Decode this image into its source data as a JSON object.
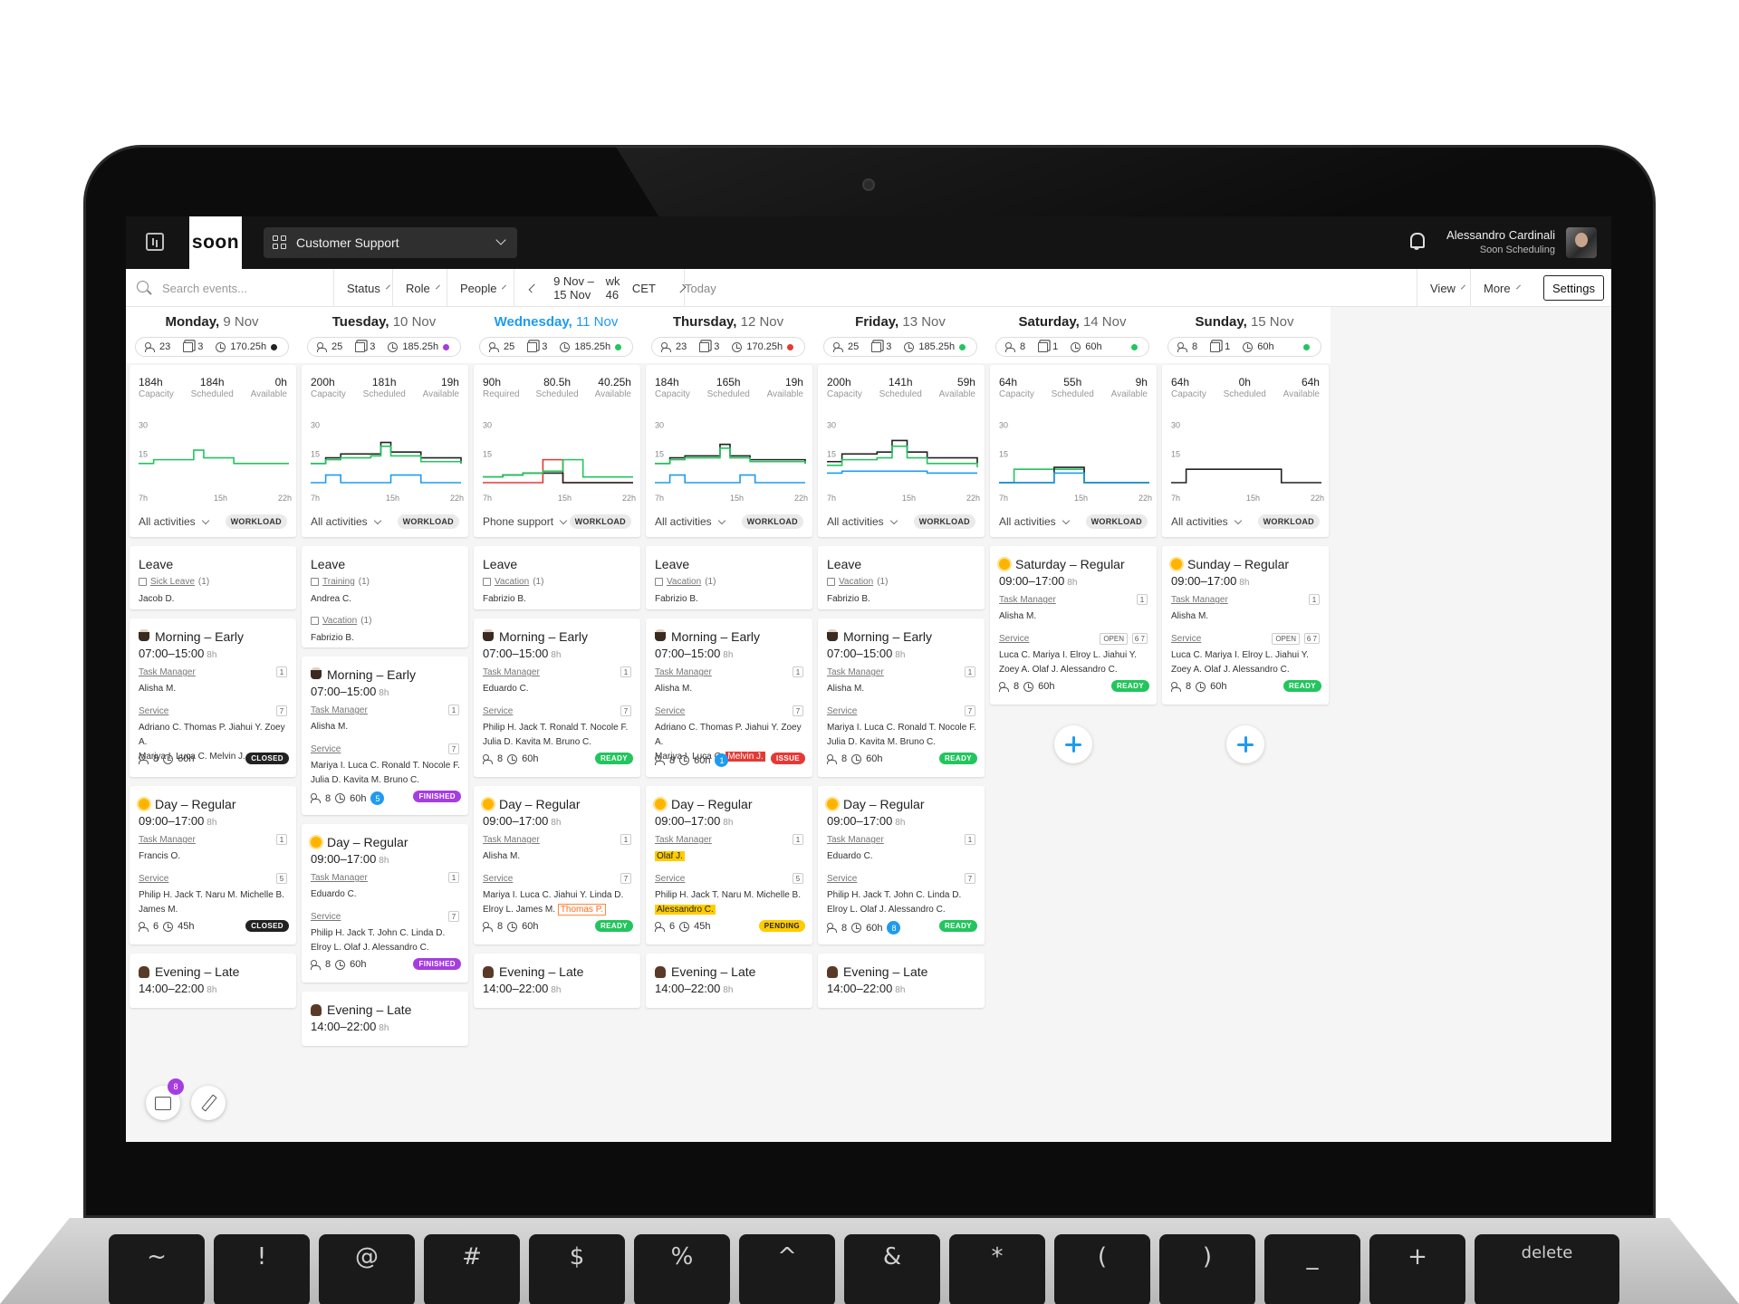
{
  "app": {
    "logo": "soon",
    "team": "Customer Support",
    "user_name": "Alessandro Cardinali",
    "user_org": "Soon Scheduling"
  },
  "toolbar": {
    "search_placeholder": "Search events...",
    "filters": [
      "Status",
      "Role",
      "People"
    ],
    "range": "9 Nov – 15 Nov",
    "week": "wk 46",
    "tz": "CET",
    "today": "Today",
    "view": "View",
    "more": "More",
    "settings": "Settings"
  },
  "colors": {
    "accent": "#1e9bf0",
    "green": "#22c55e",
    "red": "#e53935",
    "purple": "#a53de0",
    "black": "#222222",
    "yellow": "#ffcc00"
  },
  "chart_data": {
    "type": "line",
    "title": "",
    "x_ticks": [
      "7h",
      "15h",
      "22h"
    ],
    "y_ticks": [
      30,
      15
    ],
    "ylim": [
      0,
      35
    ],
    "days": [
      {
        "series": [
          {
            "color": "#22c55e",
            "x": [
              7,
              8.5,
              12.5,
              13.5,
              16.5,
              22
            ],
            "y": [
              10,
              12,
              17,
              13,
              10,
              10
            ]
          }
        ]
      },
      {
        "series": [
          {
            "color": "#222222",
            "x": [
              7,
              8.5,
              10,
              13,
              14,
              15,
              18,
              22
            ],
            "y": [
              10,
              13,
              15,
              15,
              21,
              16,
              13,
              10
            ]
          },
          {
            "color": "#22c55e",
            "x": [
              7,
              8.5,
              10,
              13,
              14,
              15,
              18,
              22
            ],
            "y": [
              10,
              12,
              13,
              14,
              19,
              14,
              11,
              10
            ]
          },
          {
            "color": "#1e9bf0",
            "x": [
              7,
              8.5,
              10,
              14,
              15,
              18,
              22
            ],
            "y": [
              0,
              4,
              0,
              0,
              4,
              0,
              0
            ]
          }
        ]
      },
      {
        "series": [
          {
            "color": "#e53935",
            "x": [
              7,
              13,
              15,
              22
            ],
            "y": [
              0,
              12,
              0,
              0
            ]
          },
          {
            "color": "#222222",
            "x": [
              7,
              9,
              11,
              13,
              15,
              22
            ],
            "y": [
              3,
              4,
              5,
              5,
              0,
              0
            ]
          },
          {
            "color": "#22c55e",
            "x": [
              7,
              9,
              11,
              13,
              15,
              17,
              22
            ],
            "y": [
              3,
              4,
              5,
              6,
              12,
              3,
              3
            ]
          }
        ]
      },
      {
        "series": [
          {
            "color": "#222222",
            "x": [
              7,
              8.5,
              10,
              12,
              13.5,
              14.5,
              16.5,
              22
            ],
            "y": [
              10,
              13,
              14,
              14,
              20,
              14,
              12,
              10
            ]
          },
          {
            "color": "#22c55e",
            "x": [
              7,
              8.5,
              10,
              12,
              13.5,
              14.5,
              16.5,
              22
            ],
            "y": [
              10,
              12,
              13,
              13,
              18,
              13,
              11,
              10
            ]
          },
          {
            "color": "#1e9bf0",
            "x": [
              7,
              8.5,
              10,
              14,
              15.5,
              17,
              22
            ],
            "y": [
              0,
              4,
              0,
              0,
              4,
              0,
              0
            ]
          }
        ]
      },
      {
        "series": [
          {
            "color": "#222222",
            "x": [
              7,
              8.5,
              12,
              13.5,
              15,
              17,
              22
            ],
            "y": [
              11,
              15,
              16,
              22,
              16,
              13,
              10
            ]
          },
          {
            "color": "#22c55e",
            "x": [
              7,
              8.5,
              12,
              13.5,
              15,
              17,
              22
            ],
            "y": [
              9,
              12,
              13,
              19,
              13,
              10,
              8
            ]
          },
          {
            "color": "#1e9bf0",
            "x": [
              7,
              8.5,
              15,
              17,
              22
            ],
            "y": [
              5,
              6,
              6,
              5,
              5
            ]
          }
        ]
      },
      {
        "series": [
          {
            "color": "#22c55e",
            "x": [
              7,
              8.5,
              12.5,
              15.5,
              22
            ],
            "y": [
              0,
              7,
              7,
              0,
              0
            ]
          },
          {
            "color": "#222222",
            "x": [
              7,
              12.5,
              15.5,
              22
            ],
            "y": [
              0,
              8,
              0,
              0
            ]
          },
          {
            "color": "#1e9bf0",
            "x": [
              7,
              12.5,
              15.5,
              22
            ],
            "y": [
              0,
              5,
              0,
              0
            ]
          }
        ]
      },
      {
        "series": [
          {
            "color": "#222222",
            "x": [
              7,
              8.5,
              18,
              22
            ],
            "y": [
              0,
              7,
              0,
              0
            ]
          }
        ]
      }
    ]
  },
  "days": [
    {
      "dow": "Monday,",
      "date": "9 Nov",
      "today": false,
      "people": "23",
      "events": "3",
      "hours": "170.25h",
      "dot": "#222222",
      "wl": [
        {
          "v": "184h",
          "l": "Capacity"
        },
        {
          "v": "184h",
          "l": "Scheduled"
        },
        {
          "v": "0h",
          "l": "Available"
        }
      ],
      "filter": "All activities",
      "wl_badge": "WORKLOAD"
    },
    {
      "dow": "Tuesday,",
      "date": "10 Nov",
      "today": false,
      "people": "25",
      "events": "3",
      "hours": "185.25h",
      "dot": "#a53de0",
      "wl": [
        {
          "v": "200h",
          "l": "Capacity"
        },
        {
          "v": "181h",
          "l": "Scheduled"
        },
        {
          "v": "19h",
          "l": "Available"
        }
      ],
      "filter": "All activities",
      "wl_badge": "WORKLOAD"
    },
    {
      "dow": "Wednesday,",
      "date": "11 Nov",
      "today": true,
      "people": "25",
      "events": "3",
      "hours": "185.25h",
      "dot": "#22c55e",
      "wl": [
        {
          "v": "90h",
          "l": "Required"
        },
        {
          "v": "80.5h",
          "l": "Scheduled"
        },
        {
          "v": "40.25h",
          "l": "Available"
        }
      ],
      "filter": "Phone support",
      "wl_badge": "WORKLOAD"
    },
    {
      "dow": "Thursday,",
      "date": "12 Nov",
      "today": false,
      "people": "23",
      "events": "3",
      "hours": "170.25h",
      "dot": "#e53935",
      "wl": [
        {
          "v": "184h",
          "l": "Capacity"
        },
        {
          "v": "165h",
          "l": "Scheduled"
        },
        {
          "v": "19h",
          "l": "Available"
        }
      ],
      "filter": "All activities",
      "wl_badge": "WORKLOAD"
    },
    {
      "dow": "Friday,",
      "date": "13 Nov",
      "today": false,
      "people": "25",
      "events": "3",
      "hours": "185.25h",
      "dot": "#22c55e",
      "wl": [
        {
          "v": "200h",
          "l": "Capacity"
        },
        {
          "v": "141h",
          "l": "Scheduled"
        },
        {
          "v": "59h",
          "l": "Available"
        }
      ],
      "filter": "All activities",
      "wl_badge": "WORKLOAD"
    },
    {
      "dow": "Saturday,",
      "date": "14 Nov",
      "today": false,
      "people": "8",
      "events": "1",
      "hours": "60h",
      "dot": "#22c55e",
      "wl": [
        {
          "v": "64h",
          "l": "Capacity"
        },
        {
          "v": "55h",
          "l": "Scheduled"
        },
        {
          "v": "9h",
          "l": "Available"
        }
      ],
      "filter": "All activities",
      "wl_badge": "WORKLOAD"
    },
    {
      "dow": "Sunday,",
      "date": "15 Nov",
      "today": false,
      "people": "8",
      "events": "1",
      "hours": "60h",
      "dot": "#22c55e",
      "wl": [
        {
          "v": "64h",
          "l": "Capacity"
        },
        {
          "v": "0h",
          "l": "Scheduled"
        },
        {
          "v": "64h",
          "l": "Available"
        }
      ],
      "filter": "All activities",
      "wl_badge": "WORKLOAD"
    }
  ],
  "leave": {
    "title": "Leave",
    "mon": [
      {
        "type": "Sick Leave",
        "count": "(1)",
        "person": "Jacob D."
      }
    ],
    "tue": [
      {
        "type": "Training",
        "count": "(1)",
        "person": "Andrea C."
      },
      {
        "type": "Vacation",
        "count": "(1)",
        "person": "Fabrizio B."
      }
    ],
    "wed": [
      {
        "type": "Vacation",
        "count": "(1)",
        "person": "Fabrizio B."
      }
    ],
    "thu": [
      {
        "type": "Vacation",
        "count": "(1)",
        "person": "Fabrizio B."
      }
    ],
    "fri": [
      {
        "type": "Vacation",
        "count": "(1)",
        "person": "Fabrizio B."
      }
    ]
  },
  "shifts": {
    "morning_title": "Morning – Early",
    "morning_time": "07:00–15:00",
    "day_title": "Day – Regular",
    "day_time": "09:00–17:00",
    "evening_title": "Evening – Late",
    "evening_time": "14:00–22:00",
    "sat_title": "Saturday – Regular",
    "sun_title": "Sunday – Regular",
    "dur": "8h",
    "role_tm": "Task Manager",
    "role_service": "Service",
    "open": "OPEN",
    "mon_m": {
      "tm": "Alisha M.",
      "tm_n": "1",
      "sv_n": "7",
      "sv": "Adriano C.  Thomas P.  Jiahui Y.  Zoey A.",
      "sv2": "Mariya I.  Luca C.  Melvin J.",
      "people": "8",
      "hours": "60h",
      "status": "CLOSED"
    },
    "mon_d": {
      "tm": "Francis O.",
      "tm_n": "1",
      "sv_n": "5",
      "sv": "Philip H.  Jack T.  Naru M.  Michelle B.",
      "sv2": "James M.",
      "people": "6",
      "hours": "45h",
      "status": "CLOSED"
    },
    "mon_e_title": "Evening – Late",
    "tue_m": {
      "tm": "Alisha M.",
      "tm_n": "1",
      "sv_n": "7",
      "sv": "Mariya I.  Luca C.  Ronald T.  Nocole F.",
      "sv2": "Julia D.  Kavita M.  Bruno C.",
      "people": "8",
      "hours": "60h",
      "badge": "5",
      "status": "FINISHED"
    },
    "tue_d": {
      "tm": "Eduardo C.",
      "tm_n": "1",
      "sv_n": "7",
      "sv": "Philip H.  Jack T.  John C.  Linda D.",
      "sv2": "Elroy L.  Olaf J.  Alessandro C.",
      "people": "8",
      "hours": "60h",
      "status": "FINISHED"
    },
    "wed_m": {
      "tm": "Eduardo C.",
      "tm_n": "1",
      "sv_n": "7",
      "sv": "Philip H.  Jack T.  Ronald T.  Nocole F.",
      "sv2": "Julia D.  Kavita M.  Bruno C.",
      "people": "8",
      "hours": "60h",
      "status": "READY"
    },
    "wed_d": {
      "tm": "Alisha M.",
      "tm_n": "1",
      "sv_n": "7",
      "sv": "Mariya I.  Luca C.  Jiahui Y.  Linda D.",
      "sv2a": "Elroy L.  James M.",
      "sv2b": "Thomas P.",
      "people": "8",
      "hours": "60h",
      "status": "READY"
    },
    "thu_m": {
      "tm": "Alisha M.",
      "tm_n": "1",
      "sv_n": "7",
      "sv": "Adriano C.  Thomas P.  Jiahui Y.  Zoey A.",
      "sv2a": "Mariya I.  Luca C.",
      "sv2b": "Melvin J.",
      "people": "8",
      "hours": "60h",
      "badge": "1",
      "status": "ISSUE"
    },
    "thu_d": {
      "tm": "Olaf J.",
      "tm_n": "1",
      "sv_n": "5",
      "sv": "Philip H.  Jack T.  Naru M.  Michelle B.",
      "sv2": "Alessandro C.",
      "people": "6",
      "hours": "45h",
      "status": "PENDING"
    },
    "fri_m": {
      "tm": "Alisha M.",
      "tm_n": "1",
      "sv_n": "7",
      "sv": "Mariya I.  Luca C.  Ronald T.  Nocole F.",
      "sv2": "Julia D.  Kavita M.  Bruno C.",
      "people": "8",
      "hours": "60h",
      "status": "READY"
    },
    "fri_d": {
      "tm": "Eduardo C.",
      "tm_n": "1",
      "sv_n": "7",
      "sv": "Philip H.  Jack T.  John C.  Linda D.",
      "sv2": "Elroy L.  Olaf J.  Alessandro C.",
      "people": "8",
      "hours": "60h",
      "badge": "8",
      "status": "READY"
    },
    "sat": {
      "tm": "Alisha M.",
      "tm_n": "1",
      "sv_n": "6 7",
      "sv": "Luca C.  Mariya I.  Elroy L.  Jiahui Y.",
      "sv2": "Zoey A.  Olaf J.  Alessandro C.",
      "people": "8",
      "hours": "60h",
      "status": "READY"
    },
    "sun": {
      "tm": "Alisha M.",
      "tm_n": "1",
      "sv_n": "6 7",
      "sv": "Luca C.  Mariya I.  Elroy L.  Jiahui Y.",
      "sv2": "Zoey A.  Olaf J.  Alessandro C.",
      "people": "8",
      "hours": "60h",
      "status": "READY"
    }
  },
  "fab": {
    "inbox_count": "8"
  },
  "keyboard": {
    "keys": [
      "~",
      "!",
      "@",
      "#",
      "$",
      "%",
      "^",
      "&",
      "*",
      "(",
      ")",
      "_",
      "+"
    ],
    "delete": "delete"
  }
}
